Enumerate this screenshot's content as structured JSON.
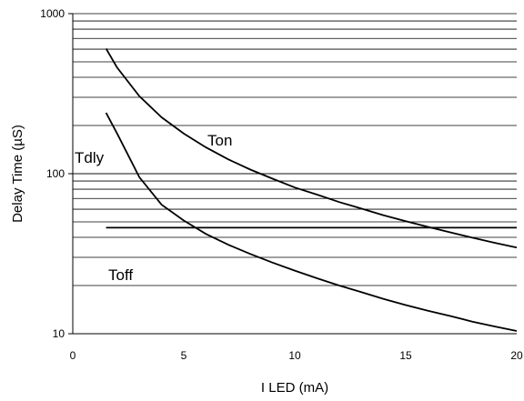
{
  "chart_data": {
    "type": "line",
    "title": "",
    "xlabel": "I LED (mA)",
    "ylabel": "Delay Time (µS)",
    "xlim": [
      0,
      20
    ],
    "ylim": [
      10,
      1000
    ],
    "yscale": "log",
    "grid": "horizontal",
    "x_ticks": [
      "0",
      "5",
      "10",
      "15",
      "20"
    ],
    "y_ticks": [
      "10",
      "100",
      "1000"
    ],
    "series": [
      {
        "name": "Ton",
        "x": [
          1.5,
          2,
          3,
          4,
          5,
          6,
          7,
          8,
          9,
          10,
          11,
          12,
          13,
          14,
          15,
          16,
          17,
          18,
          19,
          20
        ],
        "y": [
          605,
          460,
          305,
          225,
          178,
          146,
          123,
          106,
          93,
          82,
          74,
          66.5,
          60.5,
          55,
          50.5,
          46.5,
          43,
          39.8,
          37,
          34.5
        ]
      },
      {
        "name": "Tdly",
        "x": [
          1.5,
          20
        ],
        "y": [
          46,
          46
        ]
      },
      {
        "name": "Toff",
        "x": [
          1.5,
          2,
          3,
          4,
          5,
          6,
          7,
          8,
          9,
          10,
          11,
          12,
          13,
          14,
          15,
          16,
          17,
          18,
          19,
          20
        ],
        "y": [
          240,
          178,
          95,
          64,
          51,
          42,
          36,
          31.5,
          27.8,
          24.8,
          22.2,
          20,
          18.2,
          16.5,
          15.1,
          13.9,
          12.9,
          11.9,
          11.1,
          10.4
        ]
      }
    ]
  }
}
